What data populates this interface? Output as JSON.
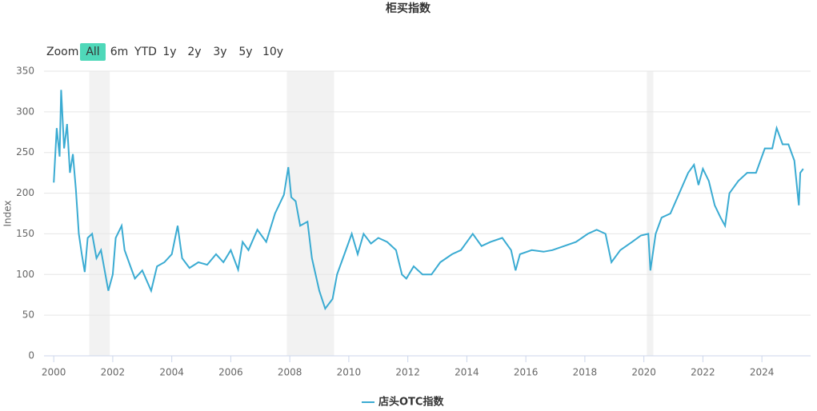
{
  "chart_data": {
    "type": "line",
    "title": "柜买指数",
    "y_label": "Index",
    "range_selector": {
      "label": "Zoom",
      "buttons": [
        "All",
        "6m",
        "YTD",
        "1y",
        "2y",
        "3y",
        "5y",
        "10y"
      ],
      "selected": 0
    },
    "x": [
      2000.0,
      2000.1,
      2000.2,
      2000.25,
      2000.35,
      2000.45,
      2000.55,
      2000.65,
      2000.75,
      2000.85,
      2000.95,
      2001.05,
      2001.15,
      2001.3,
      2001.45,
      2001.6,
      2001.75,
      2001.85,
      2002.0,
      2002.1,
      2002.3,
      2002.4,
      2002.6,
      2002.75,
      2003.0,
      2003.3,
      2003.5,
      2003.75,
      2004.0,
      2004.2,
      2004.35,
      2004.6,
      2004.9,
      2005.2,
      2005.5,
      2005.75,
      2006.0,
      2006.25,
      2006.4,
      2006.6,
      2006.9,
      2007.2,
      2007.5,
      2007.8,
      2007.95,
      2008.05,
      2008.2,
      2008.35,
      2008.6,
      2008.75,
      2009.0,
      2009.2,
      2009.45,
      2009.6,
      2009.85,
      2010.1,
      2010.3,
      2010.5,
      2010.75,
      2011.0,
      2011.3,
      2011.6,
      2011.8,
      2011.95,
      2012.2,
      2012.5,
      2012.8,
      2013.1,
      2013.5,
      2013.8,
      2014.2,
      2014.5,
      2014.8,
      2015.2,
      2015.5,
      2015.65,
      2015.8,
      2016.2,
      2016.6,
      2016.9,
      2017.3,
      2017.7,
      2018.1,
      2018.4,
      2018.7,
      2018.9,
      2019.2,
      2019.6,
      2019.9,
      2020.15,
      2020.22,
      2020.4,
      2020.6,
      2020.9,
      2021.2,
      2021.5,
      2021.7,
      2021.85,
      2022.0,
      2022.2,
      2022.4,
      2022.6,
      2022.75,
      2022.9,
      2023.2,
      2023.5,
      2023.8,
      2024.1,
      2024.35,
      2024.5,
      2024.7,
      2024.9,
      2025.1,
      2025.25,
      2025.3,
      2025.4
    ],
    "series": [
      {
        "name": "店头OTC指数",
        "color": "#3aabd2",
        "values": [
          213,
          280,
          245,
          327,
          255,
          285,
          225,
          248,
          205,
          150,
          125,
          103,
          145,
          150,
          120,
          130,
          100,
          80,
          100,
          145,
          160,
          130,
          110,
          95,
          105,
          80,
          110,
          115,
          125,
          160,
          120,
          108,
          115,
          112,
          125,
          115,
          130,
          106,
          140,
          130,
          155,
          140,
          175,
          198,
          232,
          195,
          190,
          160,
          165,
          120,
          80,
          58,
          70,
          100,
          125,
          150,
          125,
          150,
          138,
          145,
          140,
          130,
          100,
          95,
          110,
          100,
          100,
          115,
          125,
          130,
          150,
          135,
          140,
          145,
          130,
          105,
          125,
          130,
          128,
          130,
          135,
          140,
          150,
          155,
          150,
          115,
          130,
          140,
          148,
          150,
          105,
          150,
          170,
          175,
          200,
          225,
          235,
          210,
          230,
          215,
          185,
          170,
          160,
          200,
          215,
          225,
          225,
          255,
          255,
          280,
          260,
          260,
          240,
          185,
          225,
          230
        ]
      }
    ],
    "bands": [
      {
        "from": 2001.2,
        "to": 2001.9
      },
      {
        "from": 2007.9,
        "to": 2009.5
      },
      {
        "from": 2020.1,
        "to": 2020.32
      }
    ],
    "band_color": "#f2f2f2",
    "xlim": [
      1999.67,
      2025.65
    ],
    "xticks": [
      2000,
      2002,
      2004,
      2006,
      2008,
      2010,
      2012,
      2014,
      2016,
      2018,
      2020,
      2022,
      2024
    ],
    "ylim": [
      0,
      350
    ],
    "yticks": [
      0,
      50,
      100,
      150,
      200,
      250,
      300,
      350
    ],
    "grid": true
  }
}
